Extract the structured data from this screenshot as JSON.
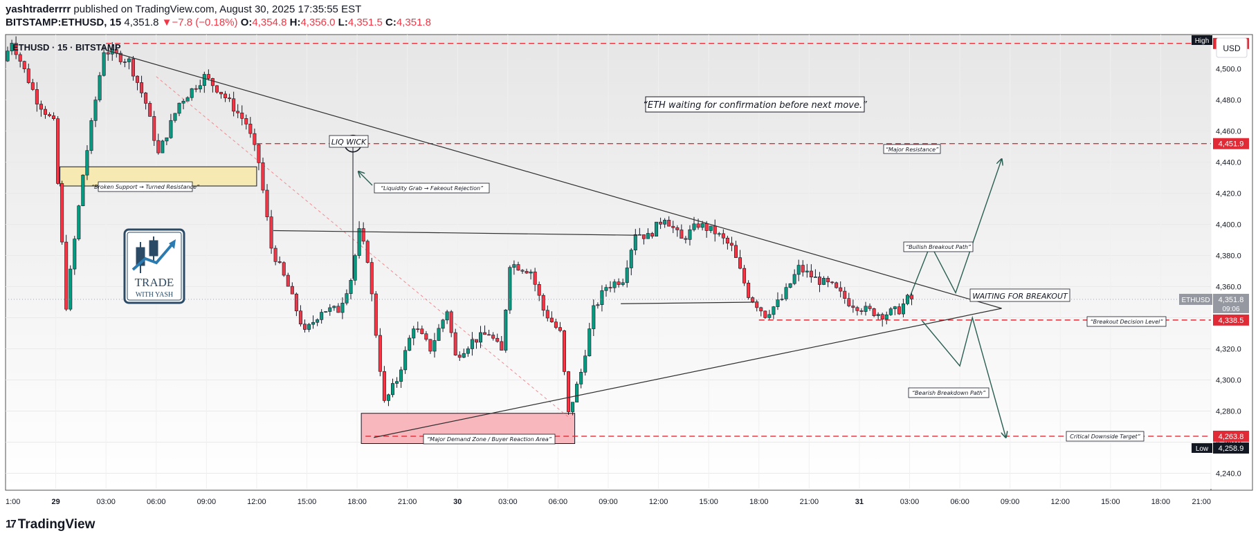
{
  "header": {
    "author": "yashtraderrrr",
    "published_text": "published on TradingView.com, August 30, 2025 17:35:55 EST",
    "symbol": "BITSTAMP:ETHUSD, 15",
    "last": "4,351.8",
    "change": "−7.8 (−0.18%)",
    "o_label": "O:",
    "o": "4,354.8",
    "h_label": "H:",
    "h": "4,356.0",
    "l_label": "L:",
    "l": "4,351.5",
    "c_label": "C:",
    "c": "4,351.8"
  },
  "chart_title": "ETHUSD · 15 · BITSTAMP",
  "currency_button": "USD",
  "footer": {
    "brand": "TradingView",
    "logo_glyph": "17"
  },
  "badge": {
    "line1": "TRADE",
    "line2": "WITH YASH"
  },
  "colors": {
    "up": "#089981",
    "down": "#f23645",
    "level": "#e02a35",
    "accent": "#2962ff"
  },
  "chart_data": {
    "type": "candlestick",
    "interval": "15",
    "y_range": [
      4230,
      4522
    ],
    "y_ticks": [
      4240,
      4260,
      4280,
      4300,
      4320,
      4340,
      4360,
      4380,
      4400,
      4420,
      4440,
      4460,
      4480,
      4500
    ],
    "y_tick_labels": [
      "4,240.0",
      "4,260.0",
      "4,280.0",
      "4,300.0",
      "4,320.0",
      "4,340.0",
      "4,360.0",
      "4,380.0",
      "4,400.0",
      "4,420.0",
      "4,440.0",
      "4,460.0",
      "4,480.0",
      "4,500.0"
    ],
    "x_range": [
      "2025-08-28T21:00",
      "2025-08-31T21:00"
    ],
    "x_ticks": [
      {
        "t": "2025-08-28T21:00",
        "label": "1:00"
      },
      {
        "t": "2025-08-29T00:00",
        "label": "29",
        "bold": true
      },
      {
        "t": "2025-08-29T03:00",
        "label": "03:00"
      },
      {
        "t": "2025-08-29T06:00",
        "label": "06:00"
      },
      {
        "t": "2025-08-29T09:00",
        "label": "09:00"
      },
      {
        "t": "2025-08-29T12:00",
        "label": "12:00"
      },
      {
        "t": "2025-08-29T15:00",
        "label": "15:00"
      },
      {
        "t": "2025-08-29T18:00",
        "label": "18:00"
      },
      {
        "t": "2025-08-29T21:00",
        "label": "21:00"
      },
      {
        "t": "2025-08-30T00:00",
        "label": "30",
        "bold": true
      },
      {
        "t": "2025-08-30T03:00",
        "label": "03:00"
      },
      {
        "t": "2025-08-30T06:00",
        "label": "06:00"
      },
      {
        "t": "2025-08-30T09:00",
        "label": "09:00"
      },
      {
        "t": "2025-08-30T12:00",
        "label": "12:00"
      },
      {
        "t": "2025-08-30T15:00",
        "label": "15:00"
      },
      {
        "t": "2025-08-30T18:00",
        "label": "18:00"
      },
      {
        "t": "2025-08-30T21:00",
        "label": "21:00"
      },
      {
        "t": "2025-08-31T00:00",
        "label": "31",
        "bold": true
      },
      {
        "t": "2025-08-31T03:00",
        "label": "03:00"
      },
      {
        "t": "2025-08-31T06:00",
        "label": "06:00"
      },
      {
        "t": "2025-08-31T09:00",
        "label": "09:00"
      },
      {
        "t": "2025-08-31T12:00",
        "label": "12:00"
      },
      {
        "t": "2025-08-31T15:00",
        "label": "15:00"
      },
      {
        "t": "2025-08-31T18:00",
        "label": "18:00"
      },
      {
        "t": "2025-08-31T21:00",
        "label": "21:00"
      }
    ],
    "path_anchors": [
      {
        "t": "2025-08-28T21:00",
        "p": 4505
      },
      {
        "t": "2025-08-28T21:30",
        "p": 4518
      },
      {
        "t": "2025-08-28T23:00",
        "p": 4480
      },
      {
        "t": "2025-08-29T00:00",
        "p": 4465
      },
      {
        "t": "2025-08-29T00:45",
        "p": 4348
      },
      {
        "t": "2025-08-29T01:45",
        "p": 4432
      },
      {
        "t": "2025-08-29T03:00",
        "p": 4512
      },
      {
        "t": "2025-08-29T04:30",
        "p": 4505
      },
      {
        "t": "2025-08-29T05:30",
        "p": 4478
      },
      {
        "t": "2025-08-29T06:15",
        "p": 4445
      },
      {
        "t": "2025-08-29T07:30",
        "p": 4478
      },
      {
        "t": "2025-08-29T09:00",
        "p": 4495
      },
      {
        "t": "2025-08-29T10:00",
        "p": 4485
      },
      {
        "t": "2025-08-29T11:30",
        "p": 4465
      },
      {
        "t": "2025-08-29T12:15",
        "p": 4440
      },
      {
        "t": "2025-08-29T13:00",
        "p": 4385
      },
      {
        "t": "2025-08-29T14:00",
        "p": 4360
      },
      {
        "t": "2025-08-29T15:00",
        "p": 4330
      },
      {
        "t": "2025-08-29T16:00",
        "p": 4345
      },
      {
        "t": "2025-08-29T17:00",
        "p": 4345
      },
      {
        "t": "2025-08-29T17:45",
        "p": 4365
      },
      {
        "t": "2025-08-29T18:15",
        "p": 4395
      },
      {
        "t": "2025-08-29T18:45",
        "p": 4378
      },
      {
        "t": "2025-08-29T19:15",
        "p": 4330
      },
      {
        "t": "2025-08-29T19:45",
        "p": 4285
      },
      {
        "t": "2025-08-29T20:30",
        "p": 4300
      },
      {
        "t": "2025-08-29T21:30",
        "p": 4335
      },
      {
        "t": "2025-08-29T22:30",
        "p": 4320
      },
      {
        "t": "2025-08-29T23:30",
        "p": 4345
      },
      {
        "t": "2025-08-30T00:00",
        "p": 4315
      },
      {
        "t": "2025-08-30T01:00",
        "p": 4325
      },
      {
        "t": "2025-08-30T02:00",
        "p": 4330
      },
      {
        "t": "2025-08-30T02:45",
        "p": 4318
      },
      {
        "t": "2025-08-30T03:15",
        "p": 4375
      },
      {
        "t": "2025-08-30T04:30",
        "p": 4370
      },
      {
        "t": "2025-08-30T05:15",
        "p": 4345
      },
      {
        "t": "2025-08-30T06:15",
        "p": 4330
      },
      {
        "t": "2025-08-30T06:45",
        "p": 4278
      },
      {
        "t": "2025-08-30T07:30",
        "p": 4305
      },
      {
        "t": "2025-08-30T08:15",
        "p": 4345
      },
      {
        "t": "2025-08-30T09:00",
        "p": 4360
      },
      {
        "t": "2025-08-30T10:00",
        "p": 4365
      },
      {
        "t": "2025-08-30T10:45",
        "p": 4395
      },
      {
        "t": "2025-08-30T11:30",
        "p": 4392
      },
      {
        "t": "2025-08-30T12:30",
        "p": 4405
      },
      {
        "t": "2025-08-30T13:30",
        "p": 4390
      },
      {
        "t": "2025-08-30T14:30",
        "p": 4400
      },
      {
        "t": "2025-08-30T15:30",
        "p": 4395
      },
      {
        "t": "2025-08-30T16:30",
        "p": 4385
      },
      {
        "t": "2025-08-30T17:30",
        "p": 4355
      },
      {
        "t": "2025-08-30T18:30",
        "p": 4342
      },
      {
        "t": "2025-08-30T19:30",
        "p": 4352
      },
      {
        "t": "2025-08-30T20:30",
        "p": 4372
      },
      {
        "t": "2025-08-30T21:30",
        "p": 4365
      },
      {
        "t": "2025-08-30T22:30",
        "p": 4360
      },
      {
        "t": "2025-08-30T23:30",
        "p": 4350
      },
      {
        "t": "2025-08-31T00:30",
        "p": 4345
      },
      {
        "t": "2025-08-31T01:30",
        "p": 4342
      },
      {
        "t": "2025-08-31T02:30",
        "p": 4345
      },
      {
        "t": "2025-08-31T03:00",
        "p": 4352
      }
    ],
    "key_levels": [
      {
        "price": 4516.3,
        "label": "4,516.3"
      },
      {
        "price": 4451.9,
        "label": "4,451.9"
      },
      {
        "price": 4338.5,
        "label": "4,338.5"
      },
      {
        "price": 4263.8,
        "label": "4,263.8"
      }
    ],
    "last_price": {
      "price": 4351.8,
      "label": "4,351.8",
      "timer": "09:06",
      "symbol": "ETHUSD"
    },
    "high_marker": {
      "label": "High"
    },
    "low_marker": {
      "price": 4258.9,
      "label": "4,258.9",
      "tag": "Low"
    },
    "annotations": {
      "headline": "“ETH waiting for confirmation before next move.”",
      "major_resistance": "“Major Resistance”",
      "liq_wick": "LIQ WICK",
      "liquidity_grab": "“Liquidity Grab → Fakeout Rejection”",
      "broken_support": "“Broken Support → Turned Resistance”",
      "demand_zone": "“Major Demand Zone / Buyer Reaction Area”",
      "bullish_path": "“Bullish Breakout Path”",
      "waiting": "WAITING FOR BREAKOUT",
      "decision_level": "“Breakout Decision Level”",
      "bearish_path": "“Bearish Breakdown Path”",
      "downside_target": "Critical Downside Target”"
    },
    "drawings": {
      "upper_trend": [
        {
          "t": "2025-08-29T03:00",
          "p": 4512
        },
        {
          "t": "2025-08-31T08:30",
          "p": 4346
        }
      ],
      "lower_trend": [
        {
          "t": "2025-08-29T19:00",
          "p": 4263
        },
        {
          "t": "2025-08-31T08:30",
          "p": 4346
        }
      ],
      "dashed_diag": [
        {
          "t": "2025-08-29T06:00",
          "p": 4495
        },
        {
          "t": "2025-08-30T06:45",
          "p": 4275
        }
      ],
      "mid_range_top": [
        {
          "t": "2025-08-29T13:00",
          "p": 4396
        },
        {
          "t": "2025-08-30T10:45",
          "p": 4393
        }
      ],
      "mid_range_low": [
        {
          "t": "2025-08-30T09:45",
          "p": 4349
        },
        {
          "t": "2025-08-30T17:45",
          "p": 4350
        }
      ],
      "liq_wick_point": {
        "t": "2025-08-29T17:45",
        "p": 4451.9
      },
      "broken_support_box": [
        {
          "t": "2025-08-29T00:15",
          "p": 4437
        },
        {
          "t": "2025-08-29T12:00",
          "p": 4430
        }
      ],
      "demand_box": [
        {
          "t": "2025-08-29T18:15",
          "p": 4275
        },
        {
          "t": "2025-08-30T07:00",
          "p": 4260
        }
      ],
      "bull_path": [
        {
          "t": "2025-08-31T03:00",
          "p": 4353
        },
        {
          "t": "2025-08-31T04:15",
          "p": 4387
        },
        {
          "t": "2025-08-31T05:45",
          "p": 4356
        },
        {
          "t": "2025-08-31T08:30",
          "p": 4442
        }
      ],
      "bear_path": [
        {
          "t": "2025-08-31T03:45",
          "p": 4338
        },
        {
          "t": "2025-08-31T06:00",
          "p": 4309
        },
        {
          "t": "2025-08-31T06:45",
          "p": 4340
        },
        {
          "t": "2025-08-31T08:45",
          "p": 4263
        }
      ]
    }
  }
}
